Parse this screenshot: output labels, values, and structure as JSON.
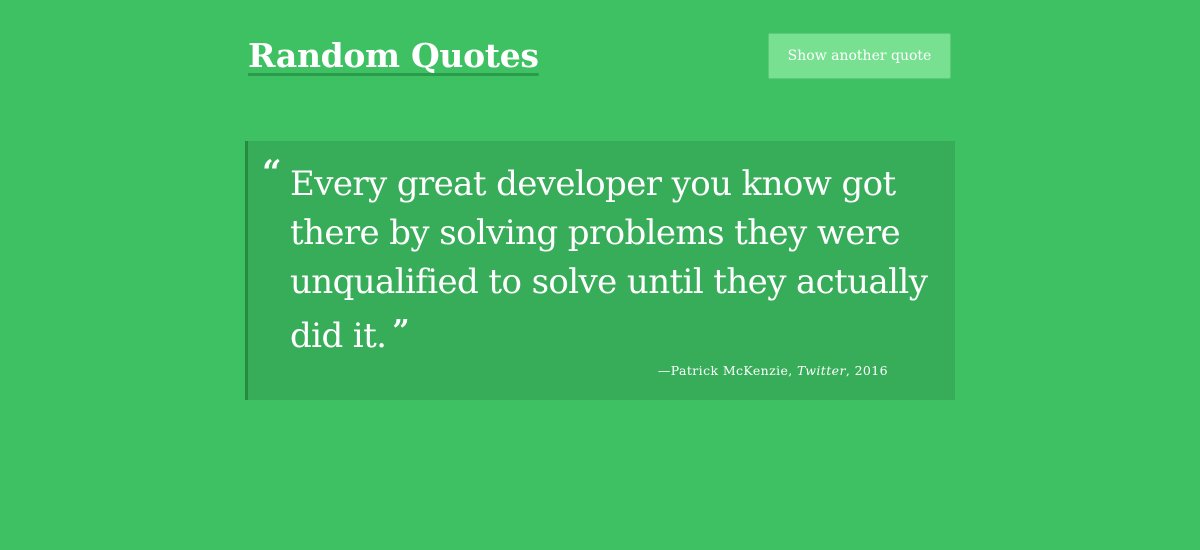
{
  "header": {
    "title": "Random Quotes",
    "new_quote_label": "Show another quote"
  },
  "quote": {
    "open_mark": "“",
    "text": "Every great developer you know got there by solving problems they were unqualified to solve until they actually did it.",
    "close_mark": "”",
    "attribution_prefix": "—",
    "author": "Patrick McKenzie",
    "separator": ", ",
    "source": "Twitter",
    "separator_2": ", ",
    "year": "2016"
  },
  "colors": {
    "background": "#3ec162",
    "quote_box": "#38ad59",
    "quote_border": "#268a43",
    "button": "#78e191",
    "text": "#ffffff"
  }
}
